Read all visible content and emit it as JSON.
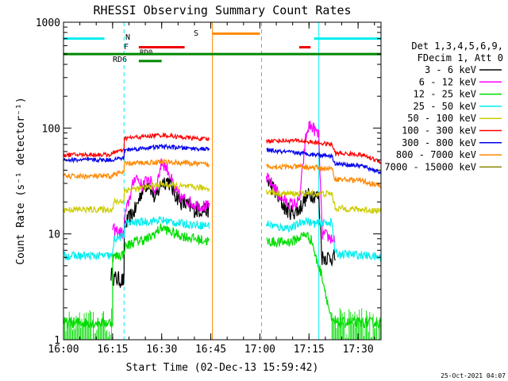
{
  "chart_data": {
    "type": "line",
    "title": "RHESSI Observing Summary Count Rates",
    "xlabel": "Start Time (02-Dec-13 15:59:42)",
    "ylabel": "Count Rate (s⁻¹ detector⁻¹)",
    "yscale": "log",
    "xlim_minutes": [
      0,
      97
    ],
    "ylim": [
      1,
      1000
    ],
    "x_ticks": [
      {
        "label": "16:00",
        "min": 0
      },
      {
        "label": "16:15",
        "min": 15
      },
      {
        "label": "16:30",
        "min": 30
      },
      {
        "label": "16:45",
        "min": 45
      },
      {
        "label": "17:00",
        "min": 60
      },
      {
        "label": "17:15",
        "min": 75
      },
      {
        "label": "17:30",
        "min": 90
      }
    ],
    "y_ticks": [
      {
        "label": "1",
        "value": 1
      },
      {
        "label": "10",
        "value": 10
      },
      {
        "label": "100",
        "value": 100
      },
      {
        "label": "1000",
        "value": 1000
      }
    ],
    "timestamp": "25-Oct-2021 04:07",
    "legend": {
      "placement": "right",
      "header": [
        "Det 1,3,4,5,6,9,",
        "FDecim 1, Att 0"
      ],
      "entries": [
        {
          "label": "3 - 6 keV",
          "color": "#000000"
        },
        {
          "label": "6 - 12 keV",
          "color": "#ff00ff"
        },
        {
          "label": "12 - 25 keV",
          "color": "#00dd00"
        },
        {
          "label": "25 - 50 keV",
          "color": "#00eeee"
        },
        {
          "label": "50 - 100 keV",
          "color": "#cccc00"
        },
        {
          "label": "100 - 300 keV",
          "color": "#ff0000"
        },
        {
          "label": "300 - 800 keV",
          "color": "#0000ee"
        },
        {
          "label": "800 - 7000 keV",
          "color": "#ff8800"
        },
        {
          "label": "7000 - 15000 keV",
          "color": "#888800"
        }
      ]
    },
    "flag_labels": {
      "night": "N",
      "flare": "F",
      "saa": "S",
      "rd0": "RD0",
      "rd6": "RD6"
    },
    "flag_bars": [
      {
        "name": "night",
        "color": "#00eeee",
        "y": 700,
        "segments": [
          [
            0,
            12.5
          ],
          [
            76.5,
            97
          ]
        ]
      },
      {
        "name": "flare",
        "color": "#ee0000",
        "y": 580,
        "segments": [
          [
            23,
            37
          ],
          [
            72,
            75.5
          ]
        ]
      },
      {
        "name": "saa",
        "color": "#ff8800",
        "y": 780,
        "segments": [
          [
            45.5,
            60
          ]
        ]
      },
      {
        "name": "decim",
        "color": "#008800",
        "y": 500,
        "segments": [
          [
            0,
            97
          ]
        ]
      },
      {
        "name": "rd6",
        "color": "#008800",
        "y": 430,
        "segments": [
          [
            23,
            30
          ]
        ]
      }
    ],
    "vlines": [
      {
        "min": 0,
        "color": "#00eeee",
        "style": "solid"
      },
      {
        "min": 18.5,
        "color": "#00eeee",
        "style": "dashed"
      },
      {
        "min": 45.5,
        "color": "#ff8800",
        "style": "solid"
      },
      {
        "min": 60.5,
        "color": "#ff8800",
        "style": "dashed"
      },
      {
        "min": 78,
        "color": "#00eeee",
        "style": "solid"
      },
      {
        "min": 97,
        "color": "#00eeee",
        "style": "dashed"
      }
    ],
    "series": [
      {
        "name": "3 - 6 keV",
        "color": "#000000",
        "noise": 0.08,
        "segments": [
          [
            [
              14.5,
              4.2
            ],
            [
              15.5,
              3.8
            ],
            [
              18.5,
              3.6
            ],
            [
              18.6,
              12
            ],
            [
              22,
              17
            ],
            [
              24,
              26
            ],
            [
              26,
              31
            ],
            [
              28,
              21
            ],
            [
              30,
              31
            ],
            [
              32,
              32
            ],
            [
              34,
              24
            ],
            [
              36,
              20
            ],
            [
              40,
              17
            ],
            [
              44.5,
              17
            ]
          ],
          [
            [
              62,
              33
            ],
            [
              64,
              27
            ],
            [
              66,
              21
            ],
            [
              68,
              17
            ],
            [
              70,
              16
            ],
            [
              72,
              17
            ],
            [
              74,
              22
            ],
            [
              76,
              24
            ],
            [
              78,
              22
            ],
            [
              79,
              6
            ],
            [
              82,
              6
            ],
            [
              83,
              6
            ]
          ]
        ]
      },
      {
        "name": "6 - 12 keV",
        "color": "#ff00ff",
        "noise": 0.06,
        "segments": [
          [
            [
              15,
              11
            ],
            [
              18.5,
              10
            ],
            [
              18.6,
              14
            ],
            [
              20,
              21
            ],
            [
              22,
              36
            ],
            [
              24,
              28
            ],
            [
              26,
              34
            ],
            [
              28,
              25
            ],
            [
              30,
              48
            ],
            [
              32,
              40
            ],
            [
              34,
              26
            ],
            [
              36,
              22
            ],
            [
              40,
              19
            ],
            [
              44.5,
              18
            ]
          ],
          [
            [
              62,
              34
            ],
            [
              64,
              29
            ],
            [
              66,
              23
            ],
            [
              68,
              20
            ],
            [
              70,
              19
            ],
            [
              72,
              20
            ],
            [
              74,
              80
            ],
            [
              75,
              105
            ],
            [
              76,
              102
            ],
            [
              78,
              85
            ],
            [
              79,
              10
            ],
            [
              82,
              9
            ],
            [
              83,
              9
            ]
          ]
        ]
      },
      {
        "name": "12 - 25 keV",
        "color": "#00dd00",
        "noise": 0.05,
        "segments": [
          [
            [
              0,
              1.45
            ],
            [
              15,
              1.45
            ],
            [
              15,
              6
            ],
            [
              18.5,
              6.5
            ],
            [
              18.6,
              7.5
            ],
            [
              22,
              8.5
            ],
            [
              26,
              9
            ],
            [
              30,
              11.5
            ],
            [
              34,
              10
            ],
            [
              40,
              9
            ],
            [
              44.5,
              8.5
            ]
          ],
          [
            [
              62,
              8.5
            ],
            [
              66,
              8.3
            ],
            [
              70,
              8.5
            ],
            [
              74,
              10
            ],
            [
              76,
              8.5
            ],
            [
              77,
              6
            ],
            [
              79,
              4
            ],
            [
              82,
              1.45
            ],
            [
              97,
              1.45
            ]
          ]
        ]
      },
      {
        "name": "25 - 50 keV",
        "color": "#00eeee",
        "noise": 0.04,
        "segments": [
          [
            [
              0,
              6.2
            ],
            [
              15,
              6.2
            ],
            [
              15.5,
              9
            ],
            [
              18.5,
              9.5
            ],
            [
              18.6,
              12.5
            ],
            [
              24,
              13
            ],
            [
              30,
              13.5
            ],
            [
              36,
              12.5
            ],
            [
              44.5,
              12
            ]
          ],
          [
            [
              62,
              12.5
            ],
            [
              66,
              11.5
            ],
            [
              70,
              11.5
            ],
            [
              74,
              13.5
            ],
            [
              76,
              12.5
            ],
            [
              78,
              12.5
            ],
            [
              82,
              13
            ],
            [
              83,
              6.5
            ],
            [
              91,
              6.3
            ],
            [
              97,
              6
            ]
          ]
        ]
      },
      {
        "name": "50 - 100 keV",
        "color": "#cccc00",
        "noise": 0.03,
        "segments": [
          [
            [
              0,
              17
            ],
            [
              15,
              17
            ],
            [
              15.5,
              20
            ],
            [
              18.5,
              20.5
            ],
            [
              18.6,
              26
            ],
            [
              24,
              27
            ],
            [
              30,
              29.5
            ],
            [
              36,
              28
            ],
            [
              44.5,
              27
            ]
          ],
          [
            [
              62,
              25
            ],
            [
              66,
              24
            ],
            [
              72,
              24
            ],
            [
              76,
              24
            ],
            [
              82,
              24
            ],
            [
              83,
              17.5
            ],
            [
              91,
              17
            ],
            [
              97,
              16.5
            ]
          ]
        ]
      },
      {
        "name": "100 - 300 keV",
        "color": "#ff0000",
        "noise": 0.02,
        "segments": [
          [
            [
              0,
              56
            ],
            [
              15,
              56
            ],
            [
              15.5,
              60
            ],
            [
              18.5,
              61
            ],
            [
              18.6,
              80
            ],
            [
              30,
              86
            ],
            [
              36,
              82
            ],
            [
              44.5,
              78
            ]
          ],
          [
            [
              62,
              76
            ],
            [
              66,
              76
            ],
            [
              72,
              76
            ],
            [
              78,
              72
            ],
            [
              82,
              70
            ],
            [
              83,
              58
            ],
            [
              91,
              56
            ],
            [
              97,
              48
            ]
          ]
        ]
      },
      {
        "name": "300 - 800 keV",
        "color": "#0000ee",
        "noise": 0.02,
        "segments": [
          [
            [
              0,
              50
            ],
            [
              15,
              50
            ],
            [
              15.5,
              51
            ],
            [
              18.5,
              52
            ],
            [
              18.6,
              62
            ],
            [
              30,
              67
            ],
            [
              36,
              65
            ],
            [
              44.5,
              63
            ]
          ],
          [
            [
              62,
              62
            ],
            [
              66,
              60
            ],
            [
              72,
              58
            ],
            [
              78,
              56
            ],
            [
              82,
              55
            ],
            [
              83,
              46
            ],
            [
              91,
              44
            ],
            [
              97,
              38
            ]
          ]
        ]
      },
      {
        "name": "800 - 7000 keV",
        "color": "#ff8800",
        "noise": 0.025,
        "segments": [
          [
            [
              0,
              35
            ],
            [
              15,
              35
            ],
            [
              15.5,
              37
            ],
            [
              18.5,
              38
            ],
            [
              18.6,
              46
            ],
            [
              30,
              48
            ],
            [
              36,
              47
            ],
            [
              44.5,
              45
            ]
          ],
          [
            [
              62,
              44
            ],
            [
              66,
              43
            ],
            [
              72,
              43
            ],
            [
              78,
              42
            ],
            [
              82,
              41
            ],
            [
              83,
              33
            ],
            [
              91,
              32
            ],
            [
              97,
              28
            ]
          ]
        ]
      }
    ]
  }
}
